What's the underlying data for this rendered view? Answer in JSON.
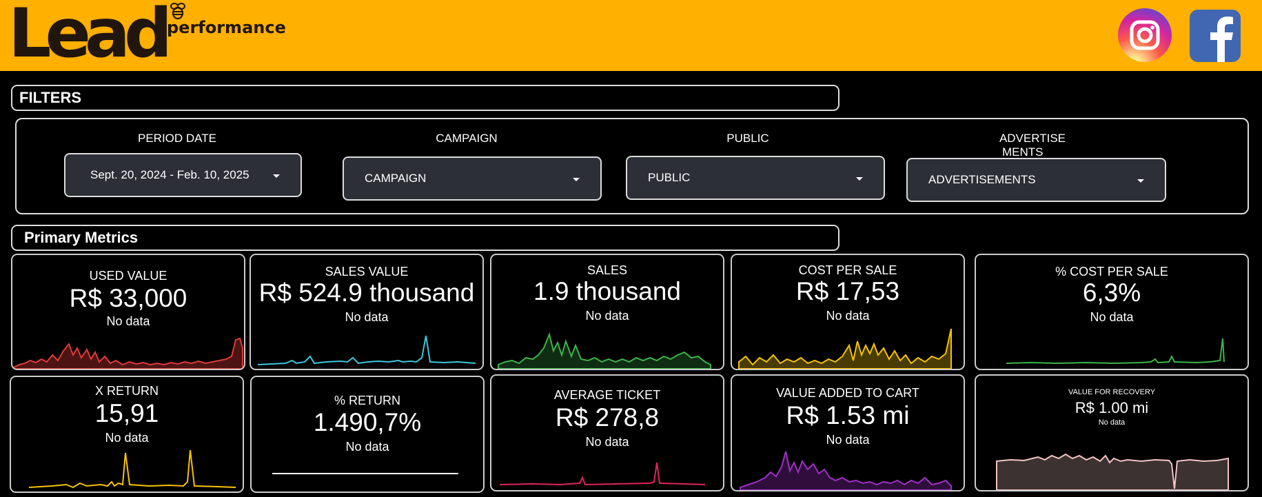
{
  "header": {
    "logo_word": "Lead",
    "logo_sub": "performance",
    "social_icons": [
      "instagram-icon",
      "facebook-icon"
    ],
    "brand_color": "#FFB000"
  },
  "filters": {
    "title": "FILTERS",
    "period": {
      "label": "PERIOD DATE",
      "value": "Sept. 20, 2024 - Feb. 10, 2025"
    },
    "campaign": {
      "label": "CAMPAIGN",
      "value": "CAMPAIGN"
    },
    "public": {
      "label": "PUBLIC",
      "value": "PUBLIC"
    },
    "ads": {
      "label_line1": "ADVERTISE",
      "label_line2": "MENTS",
      "value": "ADVERTISEMENTS"
    }
  },
  "metrics": {
    "title": "Primary Metrics",
    "cards": [
      {
        "title": "USED VALUE",
        "value": "R$ 33,000",
        "sub": "No data",
        "color": "#e03a3a"
      },
      {
        "title": "SALES VALUE",
        "value": "R$ 524.9 thousand",
        "sub": "No data",
        "color": "#3fc6dd"
      },
      {
        "title": "SALES",
        "value": "1.9 thousand",
        "sub": "No data",
        "color": "#3bb54a"
      },
      {
        "title": "COST PER SALE",
        "value": "R$ 17,53",
        "sub": "No data",
        "color": "#f5c400"
      },
      {
        "title": "% COST PER SALE",
        "value": "6,3%",
        "sub": "No data",
        "color": "#3bb54a"
      },
      {
        "title": "X RETURN",
        "value": "15,91",
        "sub": "No data",
        "color": "#f5c400"
      },
      {
        "title": "% RETURN",
        "value": "1.490,7%",
        "sub": "No data",
        "color": "#ffffff"
      },
      {
        "title": "AVERAGE TICKET",
        "value": "R$ 278,8",
        "sub": "No data",
        "color": "#e0245e"
      },
      {
        "title": "VALUE ADDED TO CART",
        "value": "R$ 1.53 mi",
        "sub": "No data",
        "color": "#a030c8"
      },
      {
        "title": "VALUE FOR RECOVERY",
        "value": "R$ 1.00 mi",
        "sub": "No data",
        "color": "#f4c6c6"
      }
    ]
  }
}
